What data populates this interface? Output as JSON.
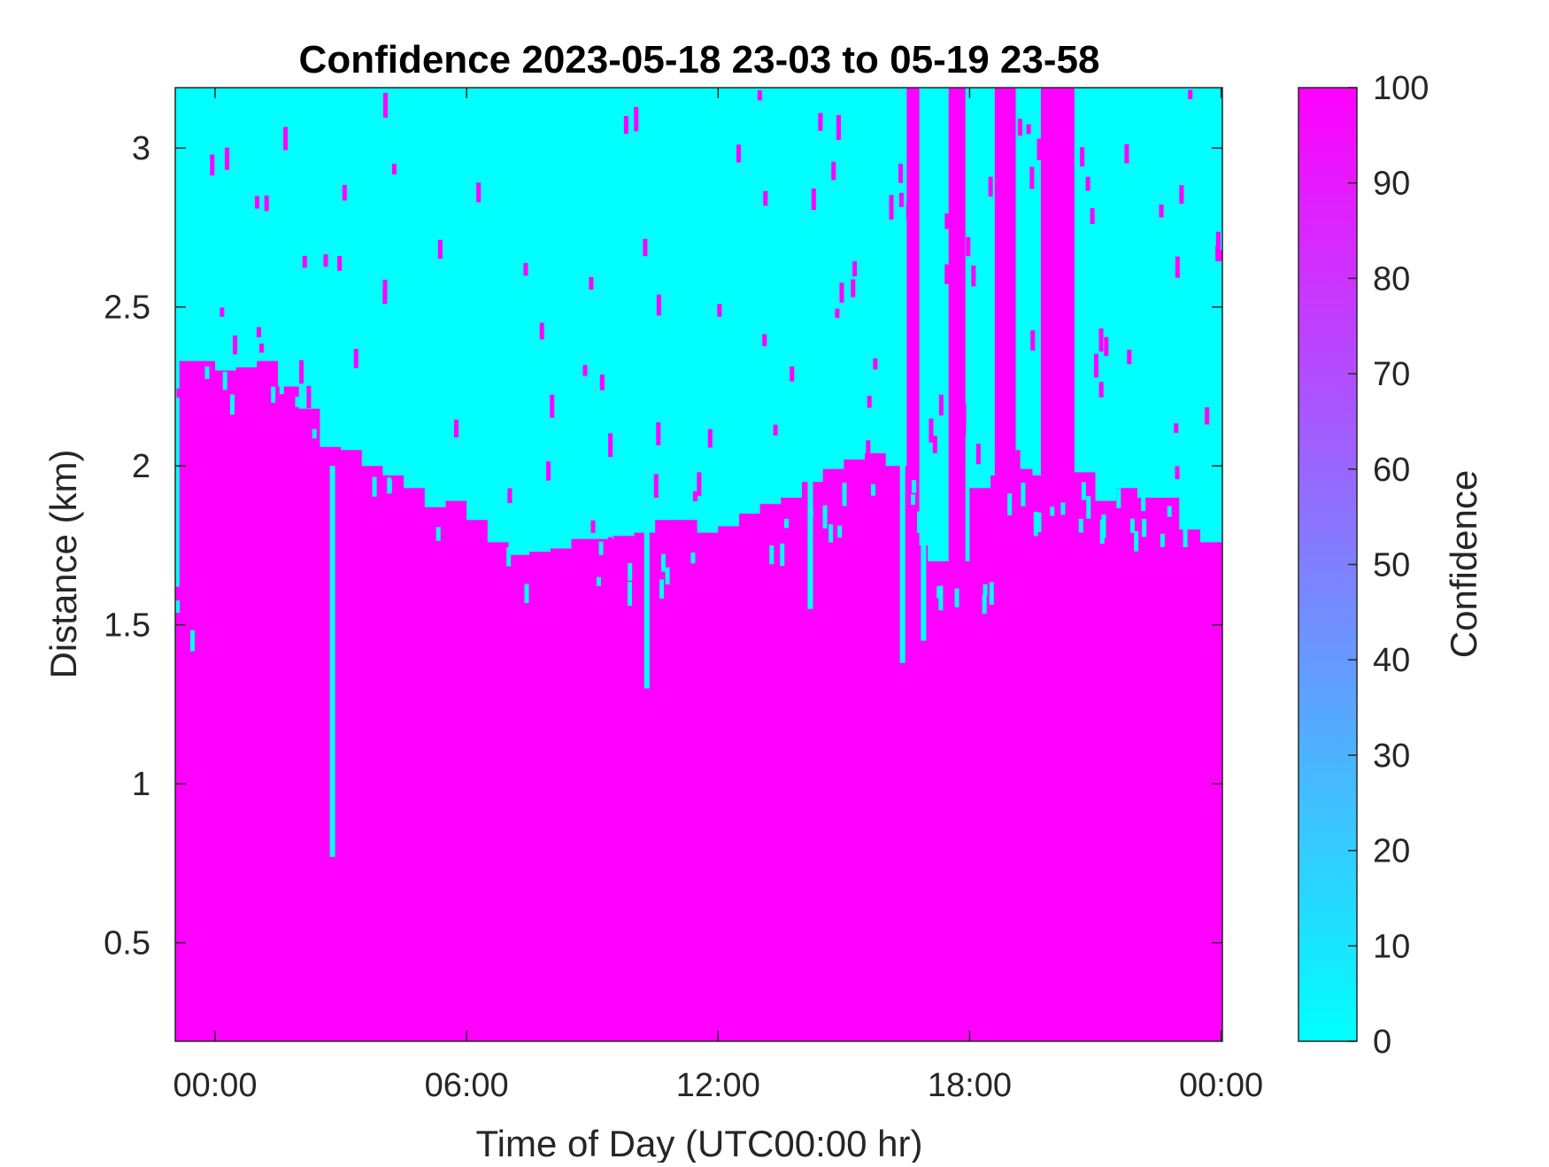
{
  "chart_data": {
    "type": "heatmap",
    "title": "Confidence 2023-05-18 23-03 to 05-19 23-58",
    "xlabel": "Time of Day (UTC00:00 hr)",
    "ylabel": "Distance (km)",
    "xlim_hours": [
      -0.95,
      24.03
    ],
    "ylim_km": [
      0.19,
      3.19
    ],
    "x_ticks": [
      {
        "hour": 0,
        "label": "00:00"
      },
      {
        "hour": 6,
        "label": "06:00"
      },
      {
        "hour": 12,
        "label": "12:00"
      },
      {
        "hour": 18,
        "label": "18:00"
      },
      {
        "hour": 24,
        "label": "00:00"
      }
    ],
    "y_ticks": [
      {
        "value": 0.5,
        "label": "0.5"
      },
      {
        "value": 1,
        "label": "1"
      },
      {
        "value": 1.5,
        "label": "1.5"
      },
      {
        "value": 2,
        "label": "2"
      },
      {
        "value": 2.5,
        "label": "2.5"
      },
      {
        "value": 3,
        "label": "3"
      }
    ],
    "colorbar": {
      "label": "Confidence",
      "range": [
        0,
        100
      ],
      "colormap": "cool",
      "low_color": "#00ffff",
      "high_color": "#ff00ff",
      "ticks": [
        {
          "value": 0,
          "label": "0"
        },
        {
          "value": 10,
          "label": "10"
        },
        {
          "value": 20,
          "label": "20"
        },
        {
          "value": 30,
          "label": "30"
        },
        {
          "value": 40,
          "label": "40"
        },
        {
          "value": 50,
          "label": "50"
        },
        {
          "value": 60,
          "label": "60"
        },
        {
          "value": 70,
          "label": "70"
        },
        {
          "value": 80,
          "label": "80"
        },
        {
          "value": 90,
          "label": "90"
        },
        {
          "value": 100,
          "label": "100"
        }
      ]
    },
    "series": [
      {
        "values_note_free": true,
        "high_confidence_top_km": [
          [
            -0.95,
            1.62
          ],
          [
            -0.85,
            2.33
          ],
          [
            -0.5,
            2.33
          ],
          [
            0,
            2.3
          ],
          [
            0.5,
            2.31
          ],
          [
            1,
            2.33
          ],
          [
            1.5,
            2.25
          ],
          [
            2,
            2.18
          ],
          [
            2.5,
            2.06
          ],
          [
            3,
            2.05
          ],
          [
            3.5,
            2.0
          ],
          [
            4,
            1.97
          ],
          [
            4.5,
            1.93
          ],
          [
            5,
            1.87
          ],
          [
            5.5,
            1.89
          ],
          [
            6,
            1.83
          ],
          [
            6.5,
            1.76
          ],
          [
            7,
            1.72
          ],
          [
            7.5,
            1.73
          ],
          [
            8,
            1.74
          ],
          [
            8.5,
            1.77
          ],
          [
            9,
            1.77
          ],
          [
            9.5,
            1.78
          ],
          [
            10,
            1.79
          ],
          [
            10.5,
            1.83
          ],
          [
            11,
            1.83
          ],
          [
            11.5,
            1.79
          ],
          [
            12,
            1.81
          ],
          [
            12.5,
            1.85
          ],
          [
            13,
            1.88
          ],
          [
            13.5,
            1.9
          ],
          [
            14,
            1.95
          ],
          [
            14.5,
            1.99
          ],
          [
            15,
            2.02
          ],
          [
            15.5,
            2.04
          ],
          [
            16,
            2.0
          ],
          [
            16.5,
            1.75
          ],
          [
            17,
            1.7
          ],
          [
            17.5,
            1.7
          ],
          [
            18,
            1.93
          ],
          [
            18.5,
            1.97
          ],
          [
            19,
            1.99
          ],
          [
            19.5,
            1.97
          ],
          [
            20,
            1.98
          ],
          [
            20.5,
            1.98
          ],
          [
            21,
            1.89
          ],
          [
            21.5,
            1.93
          ],
          [
            22,
            1.9
          ],
          [
            22.5,
            1.9
          ],
          [
            23,
            1.8
          ],
          [
            23.5,
            1.76
          ],
          [
            24.03,
            1.74
          ]
        ],
        "low_confidence_dips": [
          {
            "hour": 2.8,
            "bottom_km": 0.77
          },
          {
            "hour": 10.3,
            "bottom_km": 1.3
          },
          {
            "hour": 14.2,
            "bottom_km": 1.55
          },
          {
            "hour": 16.4,
            "bottom_km": 1.38
          },
          {
            "hour": 16.9,
            "bottom_km": 1.45
          }
        ],
        "high_confidence_plumes": [
          {
            "hour_start": 17.5,
            "hour_end": 17.9
          },
          {
            "hour_start": 18.6,
            "hour_end": 19.1
          },
          {
            "hour_start": 19.7,
            "hour_end": 20.5
          },
          {
            "hour_start": 16.5,
            "hour_end": 16.8
          }
        ]
      }
    ]
  }
}
